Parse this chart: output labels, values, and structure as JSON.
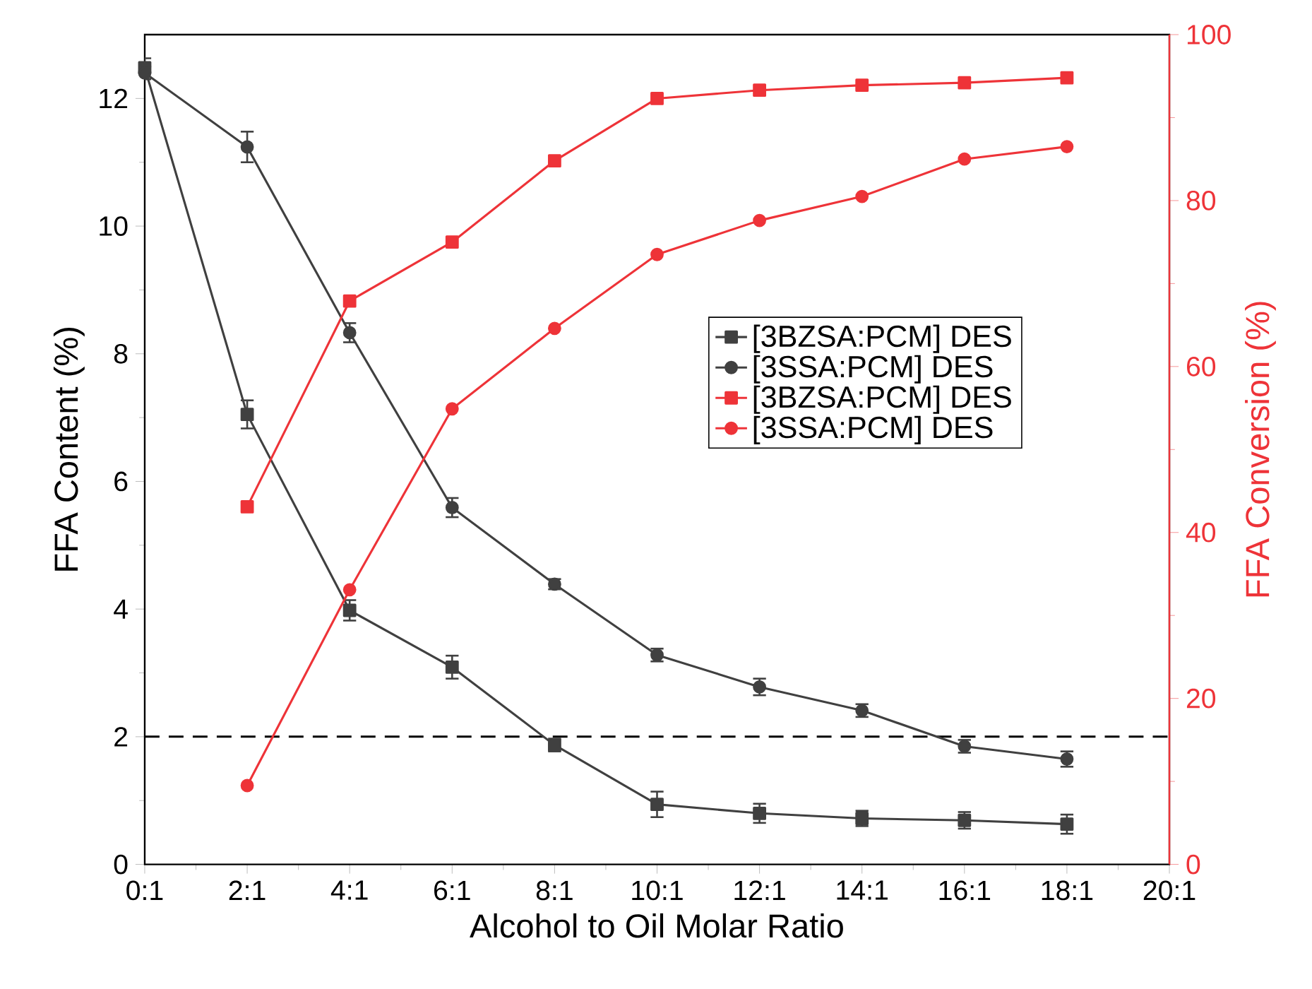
{
  "chart_data": {
    "type": "line",
    "xlabel": "Alcohol to Oil Molar Ratio",
    "ylabel": "FFA Content (%)",
    "y2label": "FFA Conversion (%)",
    "categories": [
      "0:1",
      "2:1",
      "4:1",
      "6:1",
      "8:1",
      "10:1",
      "12:1",
      "14:1",
      "16:1",
      "18:1",
      "20:1"
    ],
    "ylim": [
      0,
      13
    ],
    "yticks": [
      0,
      2,
      4,
      6,
      8,
      10,
      12
    ],
    "y2lim": [
      0,
      100
    ],
    "y2ticks": [
      0,
      20,
      40,
      60,
      80,
      100
    ],
    "series": [
      {
        "name": "[3BZSA:PCM] DES",
        "color": "#404040",
        "marker": "square",
        "values": [
          12.48,
          7.05,
          3.98,
          3.09,
          1.87,
          0.94,
          0.8,
          0.72,
          0.69,
          0.63,
          null
        ],
        "errors": [
          0.15,
          0.22,
          0.16,
          0.18,
          0.1,
          0.2,
          0.15,
          0.12,
          0.13,
          0.15,
          null
        ]
      },
      {
        "name": "[3SSA:PCM] DES",
        "color": "#404040",
        "marker": "circle",
        "values": [
          12.4,
          11.24,
          8.33,
          5.59,
          4.39,
          3.28,
          2.78,
          2.41,
          1.85,
          1.65,
          null
        ],
        "errors": [
          0.1,
          0.24,
          0.15,
          0.15,
          0.08,
          0.1,
          0.13,
          0.1,
          0.1,
          0.12,
          null
        ]
      },
      {
        "name": "[3BZSA:PCM] DES",
        "color": "#ee3338",
        "marker": "square",
        "axis": "y2",
        "values": [
          null,
          43.1,
          67.9,
          75.0,
          84.8,
          92.3,
          93.3,
          93.9,
          94.2,
          94.8,
          null
        ]
      },
      {
        "name": "[3SSA:PCM] DES",
        "color": "#ee3338",
        "marker": "circle",
        "axis": "y2",
        "values": [
          null,
          9.5,
          33.1,
          54.9,
          64.6,
          73.5,
          77.6,
          80.5,
          85.0,
          86.5,
          null
        ]
      }
    ],
    "ref_lines": [
      {
        "axis": "y",
        "value": 2,
        "color": "#000000",
        "line_style": "dashed"
      }
    ],
    "legend": "right"
  }
}
